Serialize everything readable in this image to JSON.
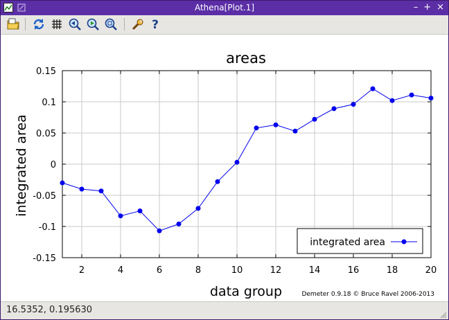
{
  "window": {
    "title": "Athena[Plot.1]",
    "controls": [
      "–",
      "+",
      "×"
    ],
    "titlebar_color": "#5b2ea6"
  },
  "toolbar": {
    "icons": [
      "open-file-icon",
      "refresh-icon",
      "grid-icon",
      "zoom-back-icon",
      "zoom-forward-icon",
      "zoom-icon",
      "settings-wrench-icon",
      "help-icon"
    ]
  },
  "status": {
    "coordinates": "16.5352, 0.195630"
  },
  "credit": "Demeter 0.9.18 © Bruce Ravel 2006-2013",
  "chart_data": {
    "type": "line",
    "title": "areas",
    "xlabel": "data group",
    "ylabel": "integrated area",
    "xlim": [
      1,
      20
    ],
    "ylim": [
      -0.15,
      0.15
    ],
    "xticks": [
      2,
      4,
      6,
      8,
      10,
      12,
      14,
      16,
      18,
      20
    ],
    "yticks": [
      -0.15,
      -0.1,
      -0.05,
      0,
      0.05,
      0.1,
      0.15
    ],
    "ytick_labels": [
      "-0.15",
      "-0.1",
      "-0.05",
      "0",
      "0.05",
      "0.1",
      "0.15"
    ],
    "grid": true,
    "legend_position": "bottom-right",
    "series": [
      {
        "name": "integrated area",
        "color": "#0000ee",
        "marker": "circle",
        "x": [
          1,
          2,
          3,
          4,
          5,
          6,
          7,
          8,
          9,
          10,
          11,
          12,
          13,
          14,
          15,
          16,
          17,
          18,
          19,
          20
        ],
        "y": [
          -0.03,
          -0.04,
          -0.043,
          -0.083,
          -0.075,
          -0.107,
          -0.096,
          -0.071,
          -0.028,
          0.003,
          0.058,
          0.063,
          0.053,
          0.072,
          0.089,
          0.096,
          0.121,
          0.102,
          0.111,
          0.106
        ]
      }
    ]
  }
}
